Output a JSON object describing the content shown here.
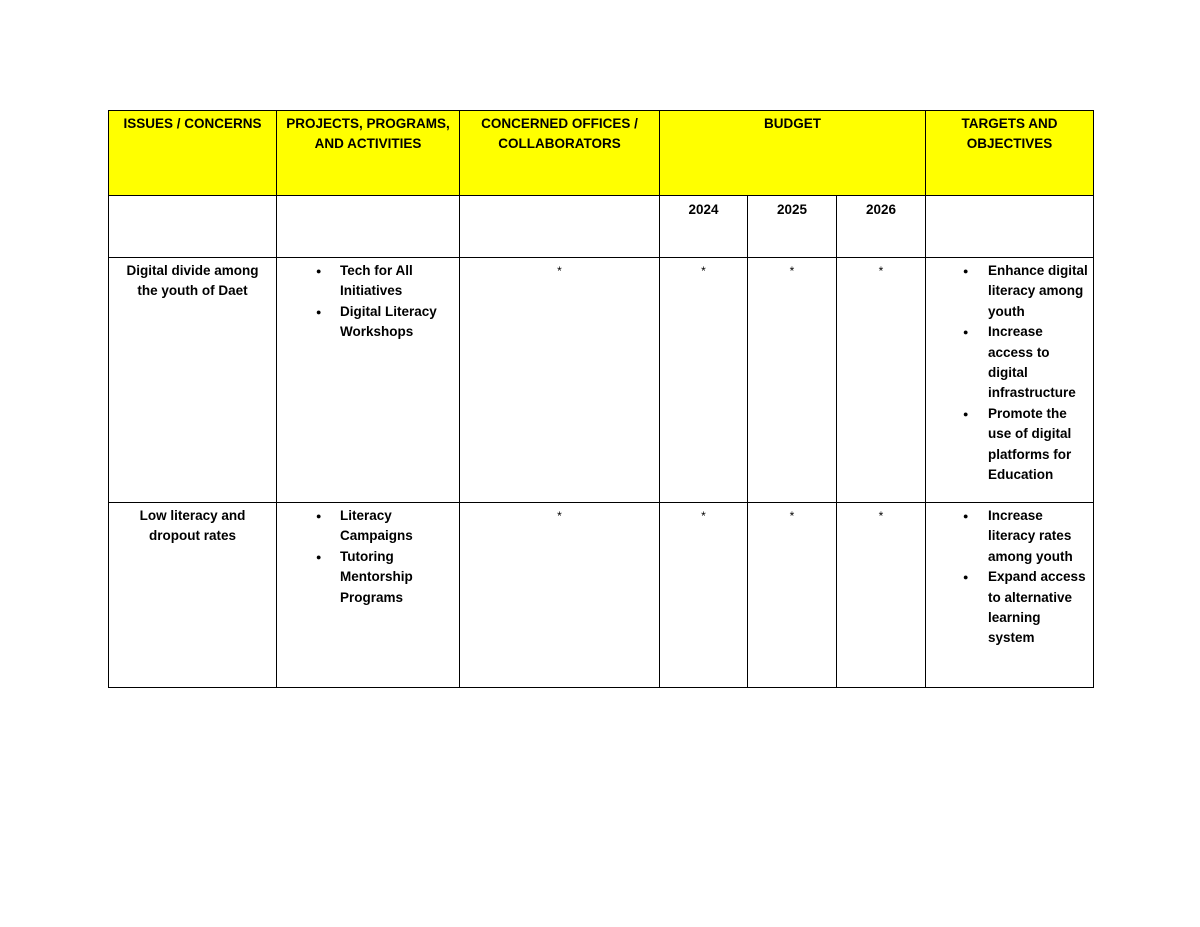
{
  "headers": {
    "issues": "ISSUES / CONCERNS",
    "ppa": "PROJECTS, PROGRAMS, AND ACTIVITIES",
    "offices": "CONCERNED OFFICES / COLLABORATORS",
    "budget": "BUDGET",
    "targets": "TARGETS AND OBJECTIVES"
  },
  "years": [
    "2024",
    "2025",
    "2026"
  ],
  "header_fill": "#ffff00",
  "rows": [
    {
      "issue": "Digital divide among the youth of Daet",
      "ppa": [
        "Tech for All Initiatives",
        "Digital Literacy Workshops"
      ],
      "offices": "*",
      "budget": [
        "*",
        "*",
        "*"
      ],
      "targets": [
        "Enhance digital literacy among youth",
        "Increase access to digital infrastructure",
        "Promote the use of digital platforms for Education"
      ]
    },
    {
      "issue": "Low literacy and dropout rates",
      "ppa": [
        "Literacy Campaigns",
        "Tutoring Mentorship Programs"
      ],
      "offices": "*",
      "budget": [
        "*",
        "*",
        "*"
      ],
      "targets": [
        "Increase literacy rates among youth",
        "Expand access to alternative learning system"
      ]
    }
  ]
}
